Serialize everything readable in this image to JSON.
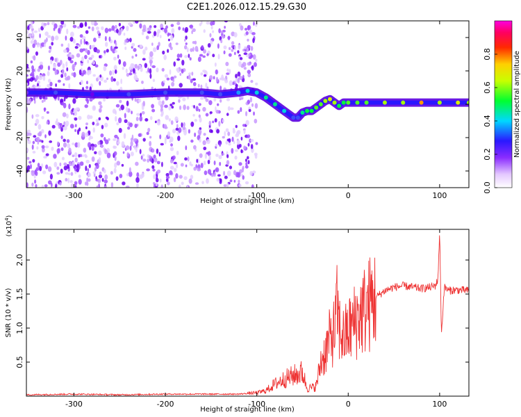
{
  "title": "C2E1.2026.012.15.29.G30",
  "colors": {
    "series": "#ee3333",
    "trace_dark": "#6a00ee",
    "frame": "#000000"
  },
  "chart_data": [
    {
      "type": "heatmap",
      "title": "C2E1.2026.012.15.29.G30",
      "xlabel": "Height of straight line (km)",
      "ylabel": "Frequency (Hz)",
      "xlim": [
        -352,
        132
      ],
      "ylim": [
        -50,
        50
      ],
      "xticks": [
        -300,
        -200,
        -100,
        0,
        100
      ],
      "yticks": [
        -40,
        -20,
        0,
        20,
        40
      ],
      "colorbar": {
        "label": "Normalized spectral amplitude",
        "range": [
          0,
          1
        ],
        "ticks": [
          0.0,
          0.2,
          0.4,
          0.6,
          0.8
        ],
        "tick_labels": [
          "0.0",
          "0.2",
          "0.4",
          "0.6",
          "0.8"
        ]
      },
      "trace": {
        "x": [
          -352,
          -320,
          -280,
          -240,
          -200,
          -160,
          -140,
          -120,
          -110,
          -100,
          -90,
          -80,
          -70,
          -60,
          -55,
          -50,
          -45,
          -40,
          -35,
          -30,
          -25,
          -20,
          -15,
          -10,
          -5,
          0,
          10,
          20,
          40,
          60,
          80,
          100,
          120,
          132
        ],
        "y": [
          7,
          7,
          6,
          6,
          7,
          7,
          6,
          7,
          8,
          7,
          4,
          0,
          -4,
          -8,
          -8,
          -5,
          -4,
          -4,
          -2,
          0,
          2,
          3,
          1,
          -1,
          1,
          1,
          1,
          1,
          1,
          1,
          1,
          1,
          1,
          1
        ],
        "amplitude": [
          0.2,
          0.3,
          0.25,
          0.3,
          0.3,
          0.3,
          0.3,
          0.35,
          0.4,
          0.4,
          0.45,
          0.45,
          0.4,
          0.3,
          0.3,
          0.45,
          0.5,
          0.5,
          0.55,
          0.55,
          0.6,
          0.65,
          0.6,
          0.5,
          0.5,
          0.55,
          0.55,
          0.55,
          0.6,
          0.6,
          0.75,
          0.6,
          0.65,
          0.6
        ]
      }
    },
    {
      "type": "line",
      "xlabel": "Height of straight line (km)",
      "ylabel": "SNR (10 * v/v)",
      "y_exponent_label": "(x10",
      "y_exponent_power": "4",
      "y_exponent_close": ")",
      "xlim": [
        -352,
        132
      ],
      "ylim": [
        0,
        2.45
      ],
      "xticks": [
        -300,
        -200,
        -100,
        0,
        100
      ],
      "yticks": [
        0.5,
        1.0,
        1.5,
        2.0
      ],
      "ytick_labels": [
        "0.5",
        "1.0",
        "1.5",
        "2.0"
      ],
      "series": [
        {
          "name": "SNR",
          "x": [
            -352,
            -300,
            -250,
            -200,
            -150,
            -120,
            -100,
            -90,
            -80,
            -70,
            -60,
            -50,
            -45,
            -40,
            -35,
            -30,
            -25,
            -20,
            -15,
            -12,
            -10,
            -5,
            0,
            5,
            10,
            20,
            30,
            40,
            50,
            60,
            70,
            80,
            90,
            95,
            98,
            100,
            102,
            105,
            110,
            120,
            132
          ],
          "y": [
            0.02,
            0.03,
            0.02,
            0.03,
            0.03,
            0.03,
            0.05,
            0.08,
            0.18,
            0.25,
            0.3,
            0.35,
            0.12,
            0.12,
            0.15,
            0.5,
            0.65,
            0.85,
            0.95,
            1.3,
            1.0,
            0.85,
            0.95,
            1.05,
            1.15,
            1.3,
            1.45,
            1.55,
            1.6,
            1.62,
            1.6,
            1.58,
            1.6,
            1.62,
            1.7,
            2.4,
            0.9,
            1.6,
            1.55,
            1.56,
            1.55
          ]
        }
      ]
    }
  ]
}
